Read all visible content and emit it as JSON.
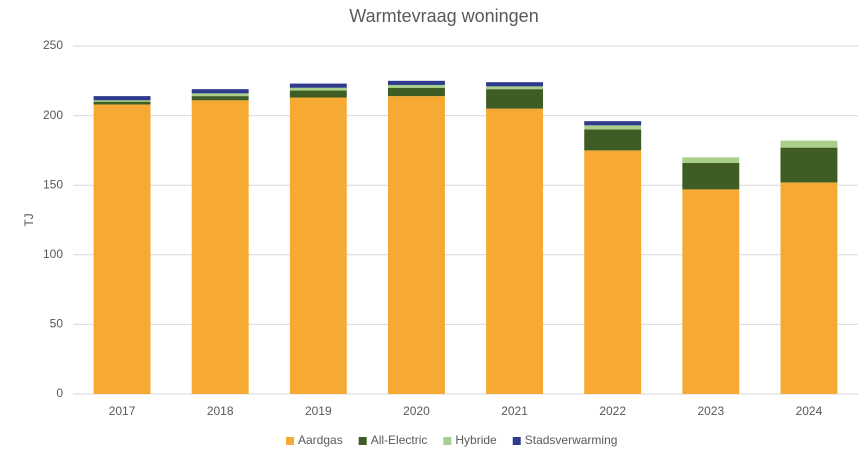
{
  "chart_data": {
    "type": "stacked_bar",
    "title": "Warmtevraag woningen",
    "y_label": "TJ",
    "categories": [
      "2017",
      "2018",
      "2019",
      "2020",
      "2021",
      "2022",
      "2023",
      "2024"
    ],
    "series": [
      {
        "name": "Aardgas",
        "color": "#f6aa33",
        "values": [
          208,
          211,
          213,
          214,
          205,
          175,
          147,
          152
        ]
      },
      {
        "name": "All-Electric",
        "color": "#3f5c24",
        "values": [
          2,
          3,
          5,
          6,
          14,
          15,
          19,
          25
        ]
      },
      {
        "name": "Hybride",
        "color": "#a9cf8a",
        "values": [
          1,
          2,
          2,
          2,
          2,
          3,
          4,
          5
        ]
      },
      {
        "name": "Stadsverwarming",
        "color": "#2e3a8c",
        "values": [
          3,
          3,
          3,
          3,
          3,
          3,
          0,
          0
        ]
      }
    ],
    "ylim": [
      0,
      250
    ],
    "yticks": [
      0,
      50,
      100,
      150,
      200,
      250
    ],
    "grid": true,
    "legend": "bottom"
  }
}
